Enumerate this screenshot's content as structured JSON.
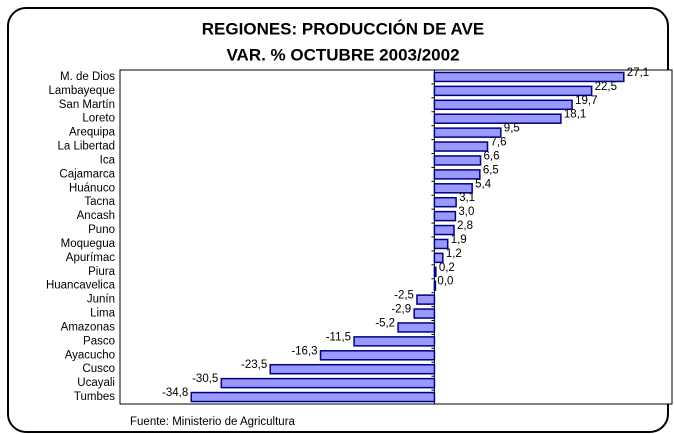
{
  "chart_data": {
    "type": "hbar",
    "title": "REGIONES:  PRODUCCIÓN DE AVE",
    "subtitle": "VAR. % OCTUBRE 2003/2002",
    "source": "Fuente: Ministerio de Agricultura",
    "categories": [
      "M. de Dios",
      "Lambayeque",
      "San Martín",
      "Loreto",
      "Arequipa",
      "La Libertad",
      "Ica",
      "Cajamarca",
      "Huánuco",
      "Tacna",
      "Ancash",
      "Puno",
      "Moquegua",
      "Apurímac",
      "Piura",
      "Huancavelica",
      "Junín",
      "Lima",
      "Amazonas",
      "Pasco",
      "Ayacucho",
      "Cusco",
      "Ucayali",
      "Tumbes"
    ],
    "values": [
      27.1,
      22.5,
      19.7,
      18.1,
      9.5,
      7.6,
      6.6,
      6.5,
      5.4,
      3.1,
      3.0,
      2.8,
      1.9,
      1.2,
      0.2,
      0.0,
      -2.5,
      -2.9,
      -5.2,
      -11.5,
      -16.3,
      -23.5,
      -30.5,
      -34.8
    ],
    "value_labels": [
      "27,1",
      "22,5",
      "19,7",
      "18,1",
      "9,5",
      "7,6",
      "6,6",
      "6,5",
      "5,4",
      "3,1",
      "3,0",
      "2,8",
      "1,9",
      "1,2",
      "0,2",
      "0,0",
      "-2,5",
      "-2,9",
      "-5,2",
      "-11,5",
      "-16,3",
      "-23,5",
      "-30,5",
      "-34,8"
    ],
    "color": "#9999ff",
    "xlim": [
      -45,
      34
    ]
  }
}
